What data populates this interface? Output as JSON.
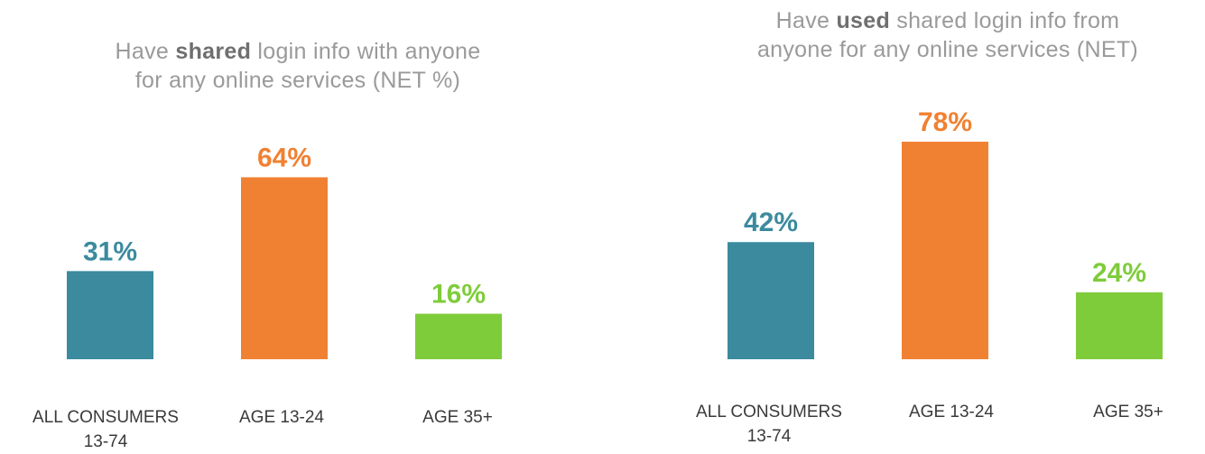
{
  "colors": {
    "all_consumers": "#3b8a9e",
    "age_13_24": "#f08132",
    "age_35_plus": "#7fcc3b"
  },
  "chart_data": [
    {
      "type": "bar",
      "title_parts": {
        "before": "Have ",
        "emphasis": "shared",
        "after_line1": " login info with anyone",
        "line2": "for any online services (NET %)"
      },
      "title": "Have shared login info with anyone for any online services (NET %)",
      "categories": [
        "ALL CONSUMERS 13-74",
        "AGE 13-24",
        "AGE 35+"
      ],
      "category_lines": [
        [
          "ALL CONSUMERS",
          "13-74"
        ],
        [
          "AGE 13-24"
        ],
        [
          "AGE 35+"
        ]
      ],
      "values": [
        31,
        64,
        16
      ],
      "value_labels": [
        "31%",
        "64%",
        "16%"
      ],
      "ylim": [
        0,
        80
      ],
      "grid": false
    },
    {
      "type": "bar",
      "title_parts": {
        "before": "Have ",
        "emphasis": "used",
        "after_line1": " shared login info from",
        "line2": "anyone for any online services (NET)"
      },
      "title": "Have used shared login info from anyone for any online services (NET)",
      "categories": [
        "ALL CONSUMERS 13-74",
        "AGE 13-24",
        "AGE 35+"
      ],
      "category_lines": [
        [
          "ALL CONSUMERS",
          "13-74"
        ],
        [
          "AGE 13-24"
        ],
        [
          "AGE 35+"
        ]
      ],
      "values": [
        42,
        78,
        24
      ],
      "value_labels": [
        "42%",
        "78%",
        "24%"
      ],
      "ylim": [
        0,
        80
      ],
      "grid": false
    }
  ]
}
